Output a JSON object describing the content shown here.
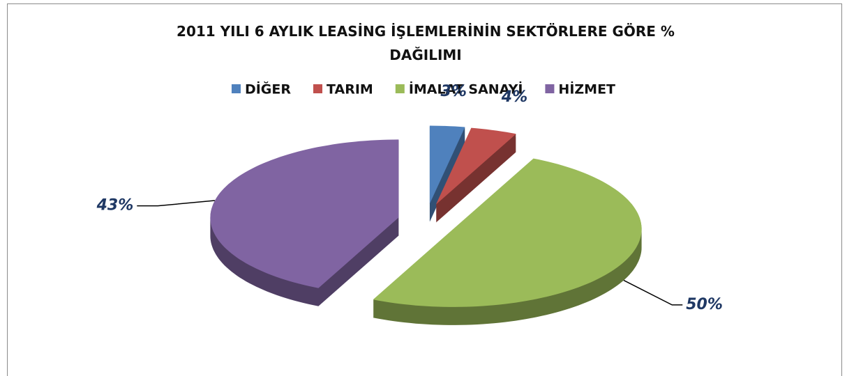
{
  "chart_data": {
    "type": "pie",
    "title": "2011 YILI  6 AYLIK LEASİNG İŞLEMLERİNİN  SEKTÖRLERE GÖRE % DAĞILIMI",
    "categories": [
      "DİĞER",
      "TARIM",
      "İMALAT SANAYİ",
      "HİZMET"
    ],
    "values": [
      3,
      4,
      50,
      43
    ],
    "value_labels": [
      "3%",
      "4%",
      "50%",
      "43%"
    ],
    "colors": [
      "#4f81bd",
      "#c0504d",
      "#9bbb59",
      "#8064a2"
    ],
    "legend": "top"
  }
}
